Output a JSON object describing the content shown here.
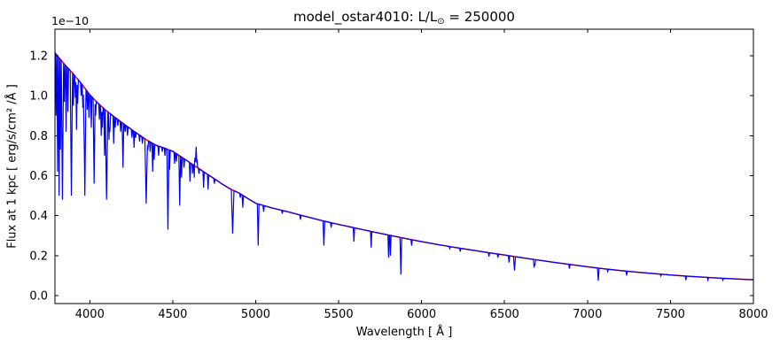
{
  "figure": {
    "background": "#ffffff",
    "title": {
      "text": "model_ostar4010: L/L⊙ = 250000",
      "prefix": "model_ostar4010: L/L",
      "sub": "⊙",
      "suffix": " = 250000"
    }
  },
  "chart_data": {
    "type": "line",
    "title": "model_ostar4010: L/L⊙ = 250000",
    "xlabel": "Wavelength [ Å ]",
    "ylabel": "Flux at 1 kpc [ erg/s/cm² /Å ]",
    "y_offset_label": "1e−10",
    "flux_unit_scale": "1e-10",
    "xlim": [
      3790,
      8000
    ],
    "ylim": [
      -0.04,
      1.333
    ],
    "x_ticks": [
      4000,
      4500,
      5000,
      5500,
      6000,
      6500,
      7000,
      7500,
      8000
    ],
    "y_ticks": [
      0.0,
      0.2,
      0.4,
      0.6,
      0.8,
      1.0,
      1.2
    ],
    "grid": false,
    "legend": null,
    "frame_color": "#000000",
    "series": [
      {
        "name": "continuum",
        "color": "#ff0000",
        "points": [
          [
            3790,
            1.215
          ],
          [
            3850,
            1.155
          ],
          [
            3900,
            1.11
          ],
          [
            3950,
            1.06
          ],
          [
            4000,
            1.005
          ],
          [
            4050,
            0.962
          ],
          [
            4100,
            0.925
          ],
          [
            4150,
            0.893
          ],
          [
            4200,
            0.862
          ],
          [
            4250,
            0.832
          ],
          [
            4300,
            0.803
          ],
          [
            4350,
            0.775
          ],
          [
            4400,
            0.752
          ],
          [
            4450,
            0.738
          ],
          [
            4500,
            0.722
          ],
          [
            4550,
            0.695
          ],
          [
            4600,
            0.667
          ],
          [
            4650,
            0.64
          ],
          [
            4700,
            0.612
          ],
          [
            4750,
            0.585
          ],
          [
            4800,
            0.557
          ],
          [
            4850,
            0.532
          ],
          [
            4900,
            0.513
          ],
          [
            4950,
            0.487
          ],
          [
            5000,
            0.462
          ],
          [
            5100,
            0.438
          ],
          [
            5200,
            0.418
          ],
          [
            5300,
            0.396
          ],
          [
            5400,
            0.375
          ],
          [
            5500,
            0.356
          ],
          [
            5600,
            0.338
          ],
          [
            5700,
            0.32
          ],
          [
            5800,
            0.303
          ],
          [
            5900,
            0.286
          ],
          [
            6000,
            0.27
          ],
          [
            6100,
            0.255
          ],
          [
            6200,
            0.241
          ],
          [
            6300,
            0.228
          ],
          [
            6400,
            0.215
          ],
          [
            6500,
            0.203
          ],
          [
            6600,
            0.19
          ],
          [
            6700,
            0.178
          ],
          [
            6800,
            0.166
          ],
          [
            6900,
            0.155
          ],
          [
            7000,
            0.144
          ],
          [
            7100,
            0.134
          ],
          [
            7200,
            0.125
          ],
          [
            7300,
            0.117
          ],
          [
            7400,
            0.11
          ],
          [
            7500,
            0.103
          ],
          [
            7600,
            0.097
          ],
          [
            7700,
            0.092
          ],
          [
            7800,
            0.087
          ],
          [
            7900,
            0.083
          ],
          [
            8000,
            0.079
          ]
        ]
      },
      {
        "name": "spectrum",
        "color": "#0000ff",
        "follows_continuum": true,
        "absorption_lines": [
          [
            3797,
            0.9
          ],
          [
            3806,
            0.62
          ],
          [
            3815,
            0.5
          ],
          [
            3823,
            0.73
          ],
          [
            3835,
            0.48,
            7
          ],
          [
            3846,
            0.97
          ],
          [
            3857,
            0.82
          ],
          [
            3868,
            0.92
          ],
          [
            3889,
            0.5,
            7
          ],
          [
            3901,
            0.95
          ],
          [
            3913,
            0.99
          ],
          [
            3920,
            0.83
          ],
          [
            3927,
            0.96
          ],
          [
            3948,
            1.0
          ],
          [
            3958,
            0.94
          ],
          [
            3964,
            0.88
          ],
          [
            3970,
            0.5,
            7
          ],
          [
            3985,
            0.93
          ],
          [
            3995,
            0.89
          ],
          [
            4009,
            0.84
          ],
          [
            4026,
            0.56,
            6
          ],
          [
            4035,
            0.9
          ],
          [
            4058,
            0.88
          ],
          [
            4069,
            0.8
          ],
          [
            4076,
            0.84
          ],
          [
            4089,
            0.7
          ],
          [
            4101,
            0.48,
            8
          ],
          [
            4116,
            0.78
          ],
          [
            4121,
            0.82
          ],
          [
            4144,
            0.76
          ],
          [
            4153,
            0.84
          ],
          [
            4169,
            0.85
          ],
          [
            4186,
            0.82
          ],
          [
            4200,
            0.64,
            5
          ],
          [
            4213,
            0.82
          ],
          [
            4227,
            0.8
          ],
          [
            4254,
            0.79
          ],
          [
            4267,
            0.74
          ],
          [
            4276,
            0.79
          ],
          [
            4300,
            0.77
          ],
          [
            4317,
            0.76
          ],
          [
            4340,
            0.46,
            8
          ],
          [
            4350,
            0.73
          ],
          [
            4364,
            0.72
          ],
          [
            4379,
            0.62
          ],
          [
            4388,
            0.68
          ],
          [
            4415,
            0.7
          ],
          [
            4437,
            0.72
          ],
          [
            4453,
            0.7
          ],
          [
            4471,
            0.33,
            6
          ],
          [
            4481,
            0.63
          ],
          [
            4511,
            0.66
          ],
          [
            4522,
            0.67
          ],
          [
            4542,
            0.45,
            5
          ],
          [
            4553,
            0.59
          ],
          [
            4568,
            0.64
          ],
          [
            4604,
            0.57
          ],
          [
            4620,
            0.61
          ],
          [
            4631,
            0.57
          ],
          [
            4658,
            0.61
          ],
          [
            4686,
            0.54
          ],
          [
            4713,
            0.53
          ],
          [
            4751,
            0.56
          ],
          [
            4861,
            0.31,
            8
          ],
          [
            4907,
            0.49
          ],
          [
            4922,
            0.44
          ],
          [
            5015,
            0.25,
            5
          ],
          [
            5048,
            0.42
          ],
          [
            5160,
            0.41
          ],
          [
            5270,
            0.38
          ],
          [
            5411,
            0.25,
            5
          ],
          [
            5455,
            0.34
          ],
          [
            5592,
            0.27
          ],
          [
            5696,
            0.24
          ],
          [
            5801,
            0.19
          ],
          [
            5812,
            0.2
          ],
          [
            5875,
            0.105,
            5
          ],
          [
            5940,
            0.25
          ],
          [
            6170,
            0.235
          ],
          [
            6233,
            0.22
          ],
          [
            6406,
            0.195
          ],
          [
            6460,
            0.19
          ],
          [
            6527,
            0.165
          ],
          [
            6560,
            0.125,
            6
          ],
          [
            6678,
            0.14
          ],
          [
            6683,
            0.15
          ],
          [
            6891,
            0.135
          ],
          [
            7065,
            0.075,
            5
          ],
          [
            7122,
            0.12
          ],
          [
            7236,
            0.1
          ],
          [
            7442,
            0.098
          ],
          [
            7593,
            0.077
          ],
          [
            7726,
            0.078
          ],
          [
            7816,
            0.077
          ]
        ],
        "emission_lines": [
          [
            4634,
            0.69,
            4
          ],
          [
            4641,
            0.745,
            5
          ],
          [
            4647,
            0.68,
            3
          ]
        ]
      }
    ]
  }
}
